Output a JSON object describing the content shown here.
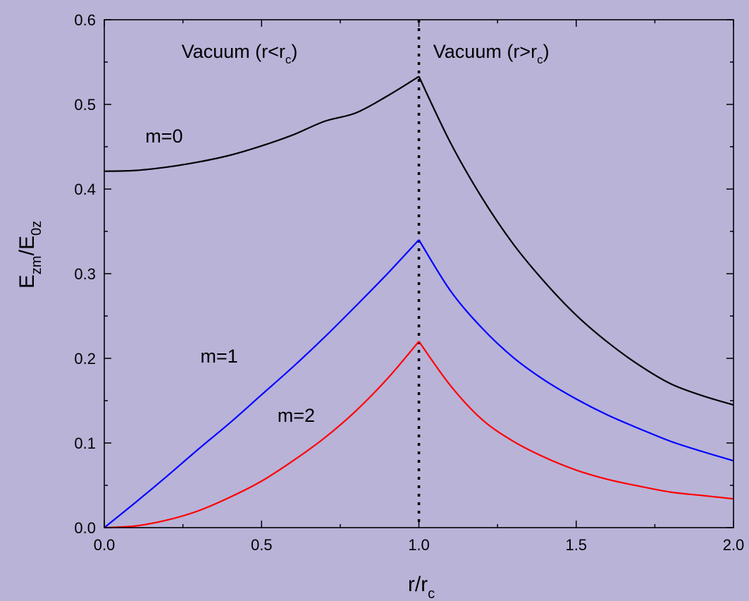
{
  "chart_data": {
    "type": "line",
    "title": "",
    "xlabel": {
      "main": "r/r",
      "sub": "c"
    },
    "ylabel": {
      "main1": "E",
      "sub1": "zm",
      "main2": "/E",
      "sub2": "0z"
    },
    "xlim": [
      0.0,
      2.0
    ],
    "ylim": [
      0.0,
      0.6
    ],
    "x_ticks": [
      0.0,
      0.5,
      1.0,
      1.5,
      2.0
    ],
    "x_tick_labels": [
      "0.0",
      "0.5",
      "1.0",
      "1.5",
      "2.0"
    ],
    "x_minor_ticks": [
      0.25,
      0.75,
      1.25,
      1.75
    ],
    "y_ticks": [
      0.0,
      0.1,
      0.2,
      0.3,
      0.4,
      0.5,
      0.6
    ],
    "y_tick_labels": [
      "0.0",
      "0.1",
      "0.2",
      "0.3",
      "0.4",
      "0.5",
      "0.6"
    ],
    "y_minor_ticks": [
      0.05,
      0.15,
      0.25,
      0.35,
      0.45,
      0.55
    ],
    "grid": false,
    "vertical_line": {
      "x": 1.0,
      "style": "dotted"
    },
    "x": [
      0.0,
      0.1,
      0.2,
      0.3,
      0.4,
      0.5,
      0.6,
      0.7,
      0.8,
      0.9,
      1.0,
      1.1,
      1.2,
      1.3,
      1.4,
      1.5,
      1.6,
      1.7,
      1.8,
      1.9,
      2.0
    ],
    "series": [
      {
        "key": "m0",
        "color": "#000000",
        "values": [
          0.421,
          0.422,
          0.426,
          0.432,
          0.44,
          0.451,
          0.464,
          0.48,
          0.49,
          0.51,
          0.533,
          0.455,
          0.39,
          0.335,
          0.29,
          0.251,
          0.219,
          0.192,
          0.17,
          0.156,
          0.145
        ]
      },
      {
        "key": "m1",
        "color": "#0000ff",
        "values": [
          0.0,
          0.03,
          0.061,
          0.093,
          0.124,
          0.157,
          0.19,
          0.225,
          0.262,
          0.3,
          0.34,
          0.28,
          0.236,
          0.201,
          0.174,
          0.152,
          0.133,
          0.117,
          0.102,
          0.09,
          0.079
        ]
      },
      {
        "key": "m2",
        "color": "#ff0000",
        "values": [
          0.0,
          0.002,
          0.009,
          0.02,
          0.036,
          0.055,
          0.079,
          0.106,
          0.138,
          0.176,
          0.22,
          0.168,
          0.128,
          0.102,
          0.083,
          0.068,
          0.057,
          0.049,
          0.042,
          0.038,
          0.034
        ]
      }
    ],
    "annotations": [
      {
        "key": "label_m0",
        "text": "m=0",
        "x": 0.19,
        "y": 0.455
      },
      {
        "key": "label_m1",
        "text": "m=1",
        "x": 0.365,
        "y": 0.195
      },
      {
        "key": "label_m2",
        "text": "m=2",
        "x": 0.61,
        "y": 0.125
      }
    ],
    "region_labels": [
      {
        "key": "region_inside",
        "main": "Vacuum (r<r",
        "sub": "c",
        "close": ")",
        "x": 0.43,
        "y": 0.555
      },
      {
        "key": "region_outside",
        "main": "Vacuum (r>r",
        "sub": "c",
        "close": ")",
        "x": 1.23,
        "y": 0.555
      }
    ]
  }
}
